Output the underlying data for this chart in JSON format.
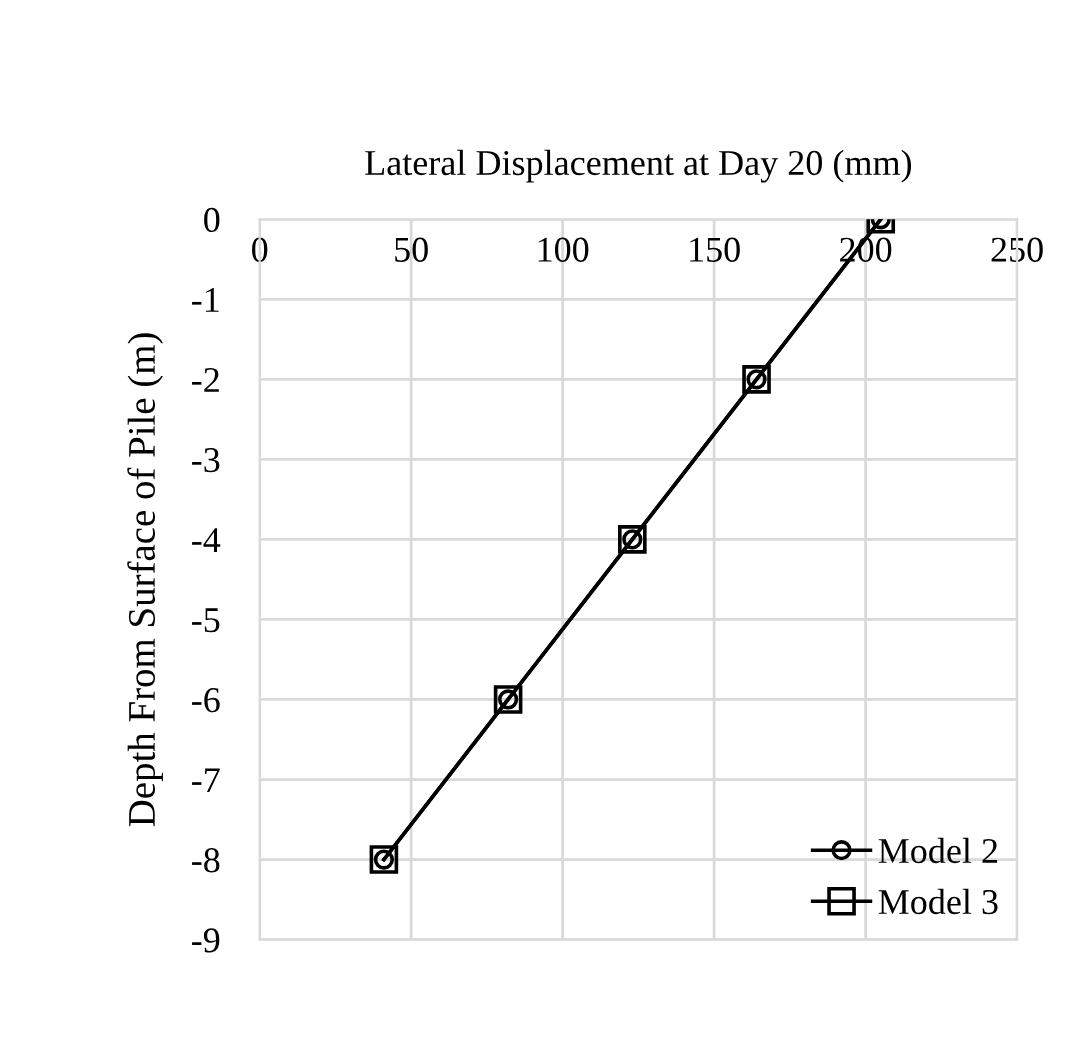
{
  "chart_data": {
    "type": "line",
    "xlabel": "Lateral Displacement at Day 20 (mm)",
    "ylabel": "Depth From Surface of Pile (m)",
    "xlim": [
      0,
      250
    ],
    "xticks": [
      0,
      50,
      100,
      150,
      200,
      250
    ],
    "ylim": [
      -9,
      0
    ],
    "yticks": [
      -9,
      -8,
      -7,
      -6,
      -5,
      -4,
      -3,
      -2,
      -1,
      0
    ],
    "grid": true,
    "legend": "bottom right",
    "line_style": "solid",
    "series": [
      {
        "name": "Model 2",
        "color": "#000000",
        "marker": "circle",
        "x": [
          41,
          82,
          123,
          164,
          205
        ],
        "values": [
          -8,
          -6,
          -4,
          -2,
          0
        ]
      },
      {
        "name": "Model 3",
        "color": "#000000",
        "marker": "square",
        "x": [
          41,
          82,
          123,
          164,
          205
        ],
        "values": [
          -8,
          -6,
          -4,
          -2,
          0
        ]
      }
    ]
  }
}
